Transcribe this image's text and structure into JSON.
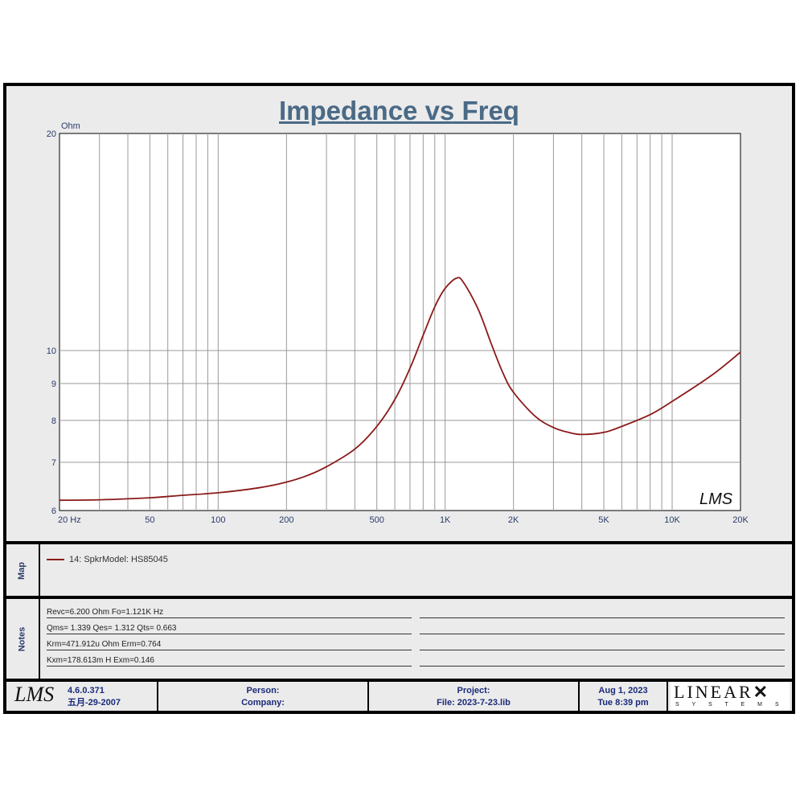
{
  "chart_data": {
    "type": "line",
    "title": "Impedance vs Freq",
    "ylabel": "Ohm",
    "xscale": "log",
    "yscale": "log",
    "xlim": [
      20,
      20000
    ],
    "ylim": [
      6,
      20
    ],
    "grid": true,
    "xticks": [
      {
        "v": 20,
        "label": "20  Hz"
      },
      {
        "v": 50,
        "label": "50"
      },
      {
        "v": 100,
        "label": "100"
      },
      {
        "v": 200,
        "label": "200"
      },
      {
        "v": 500,
        "label": "500"
      },
      {
        "v": 1000,
        "label": "1K"
      },
      {
        "v": 2000,
        "label": "2K"
      },
      {
        "v": 5000,
        "label": "5K"
      },
      {
        "v": 10000,
        "label": "10K"
      },
      {
        "v": 20000,
        "label": "20K"
      }
    ],
    "yticks": [
      {
        "v": 20,
        "label": "20"
      },
      {
        "v": 10,
        "label": "10"
      },
      {
        "v": 9,
        "label": "9"
      },
      {
        "v": 8,
        "label": "8"
      },
      {
        "v": 7,
        "label": "7"
      },
      {
        "v": 6,
        "label": "6"
      }
    ],
    "series": [
      {
        "name": "14: SpkrModel: HS85045",
        "color": "#8b1a1a",
        "x": [
          20,
          30,
          50,
          70,
          100,
          150,
          200,
          250,
          300,
          400,
          500,
          600,
          700,
          800,
          900,
          1000,
          1121,
          1200,
          1400,
          1600,
          1800,
          2000,
          2500,
          3000,
          3500,
          4000,
          5000,
          6000,
          8000,
          10000,
          15000,
          20000
        ],
        "y": [
          6.2,
          6.21,
          6.25,
          6.3,
          6.35,
          6.45,
          6.57,
          6.72,
          6.9,
          7.3,
          7.85,
          8.55,
          9.45,
          10.5,
          11.5,
          12.2,
          12.6,
          12.45,
          11.4,
          10.2,
          9.3,
          8.75,
          8.1,
          7.82,
          7.7,
          7.65,
          7.7,
          7.85,
          8.15,
          8.5,
          9.25,
          9.95
        ]
      }
    ]
  },
  "watermark": "LMS",
  "map": {
    "label": "Map",
    "entries": [
      "14: SpkrModel: HS85045"
    ]
  },
  "notes": {
    "label": "Notes",
    "lines": [
      "Revc=6.200 Ohm  Fo=1.121K Hz",
      "Qms= 1.339  Qes= 1.312  Qts= 0.663",
      "Krm=471.912u Ohm  Erm=0.764",
      "Kxm=178.613m H  Exm=0.146"
    ]
  },
  "footer": {
    "logo": "LMS",
    "version": "4.6.0.371",
    "build_date": "五月-29-2007",
    "person_label": "Person:",
    "company_label": "Company:",
    "project_label": "Project:",
    "file_label": "File: 2023-7-23.lib",
    "date": "Aug  1, 2023",
    "time": "Tue  8:39 pm",
    "brand_top": "LINEAR",
    "brand_bottom": "S Y S T E M S"
  }
}
